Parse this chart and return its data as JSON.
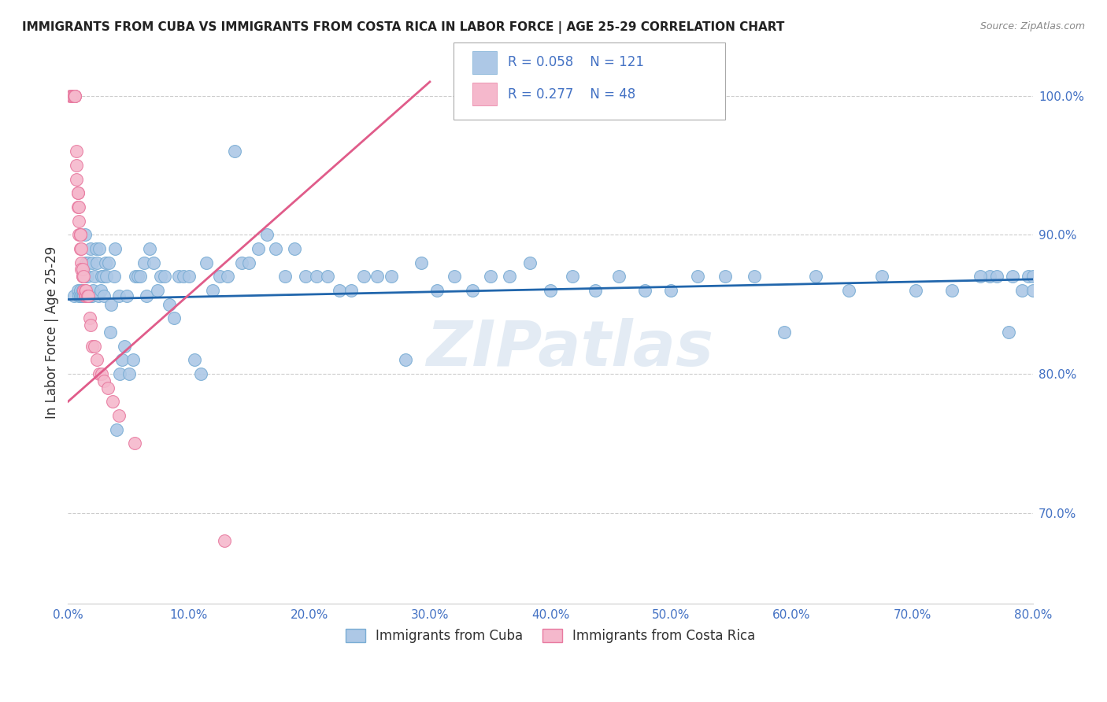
{
  "title": "IMMIGRANTS FROM CUBA VS IMMIGRANTS FROM COSTA RICA IN LABOR FORCE | AGE 25-29 CORRELATION CHART",
  "source": "Source: ZipAtlas.com",
  "ylabel": "In Labor Force | Age 25-29",
  "xlim": [
    0.0,
    0.8
  ],
  "ylim": [
    0.635,
    1.025
  ],
  "xticks": [
    0.0,
    0.1,
    0.2,
    0.3,
    0.4,
    0.5,
    0.6,
    0.7,
    0.8
  ],
  "xticklabels": [
    "0.0%",
    "10.0%",
    "20.0%",
    "30.0%",
    "40.0%",
    "50.0%",
    "60.0%",
    "70.0%",
    "80.0%"
  ],
  "yticks_right": [
    0.7,
    0.8,
    0.9,
    1.0
  ],
  "ytick_right_labels": [
    "70.0%",
    "80.0%",
    "90.0%",
    "100.0%"
  ],
  "cuba_color": "#adc8e6",
  "cuba_edge": "#7aadd4",
  "costa_rica_color": "#f5b8cc",
  "costa_rica_edge": "#e87aa0",
  "cuba_R": 0.058,
  "cuba_N": 121,
  "costa_rica_R": 0.277,
  "costa_rica_N": 48,
  "trend_cuba_color": "#2166ac",
  "trend_costa_rica_color": "#e05c8a",
  "watermark": "ZIPatlas",
  "background_color": "#ffffff",
  "grid_color": "#cccccc",
  "axis_label_color": "#4472c4",
  "title_color": "#222222",
  "cuba_x": [
    0.005,
    0.008,
    0.009,
    0.01,
    0.01,
    0.011,
    0.012,
    0.012,
    0.013,
    0.013,
    0.014,
    0.014,
    0.015,
    0.015,
    0.016,
    0.016,
    0.017,
    0.017,
    0.018,
    0.018,
    0.019,
    0.019,
    0.02,
    0.02,
    0.021,
    0.022,
    0.023,
    0.024,
    0.025,
    0.026,
    0.027,
    0.028,
    0.029,
    0.03,
    0.031,
    0.032,
    0.034,
    0.035,
    0.036,
    0.038,
    0.039,
    0.04,
    0.042,
    0.043,
    0.045,
    0.047,
    0.049,
    0.051,
    0.054,
    0.056,
    0.058,
    0.06,
    0.063,
    0.065,
    0.068,
    0.071,
    0.074,
    0.077,
    0.08,
    0.084,
    0.088,
    0.092,
    0.096,
    0.1,
    0.105,
    0.11,
    0.115,
    0.12,
    0.126,
    0.132,
    0.138,
    0.144,
    0.15,
    0.158,
    0.165,
    0.172,
    0.18,
    0.188,
    0.197,
    0.206,
    0.215,
    0.225,
    0.235,
    0.245,
    0.256,
    0.268,
    0.28,
    0.293,
    0.306,
    0.32,
    0.335,
    0.35,
    0.366,
    0.383,
    0.4,
    0.418,
    0.437,
    0.457,
    0.478,
    0.5,
    0.522,
    0.545,
    0.569,
    0.594,
    0.62,
    0.647,
    0.675,
    0.703,
    0.733,
    0.764,
    0.756,
    0.77,
    0.783,
    0.796,
    0.806,
    0.817,
    0.78,
    0.791,
    0.8,
    0.81,
    0.8
  ],
  "cuba_y": [
    0.856,
    0.86,
    0.856,
    0.856,
    0.86,
    0.856,
    0.856,
    0.86,
    0.856,
    0.87,
    0.87,
    0.9,
    0.88,
    0.856,
    0.856,
    0.87,
    0.856,
    0.88,
    0.856,
    0.856,
    0.856,
    0.89,
    0.856,
    0.88,
    0.86,
    0.87,
    0.89,
    0.88,
    0.856,
    0.89,
    0.86,
    0.87,
    0.87,
    0.856,
    0.88,
    0.87,
    0.88,
    0.83,
    0.85,
    0.87,
    0.89,
    0.76,
    0.856,
    0.8,
    0.81,
    0.82,
    0.856,
    0.8,
    0.81,
    0.87,
    0.87,
    0.87,
    0.88,
    0.856,
    0.89,
    0.88,
    0.86,
    0.87,
    0.87,
    0.85,
    0.84,
    0.87,
    0.87,
    0.87,
    0.81,
    0.8,
    0.88,
    0.86,
    0.87,
    0.87,
    0.96,
    0.88,
    0.88,
    0.89,
    0.9,
    0.89,
    0.87,
    0.89,
    0.87,
    0.87,
    0.87,
    0.86,
    0.86,
    0.87,
    0.87,
    0.87,
    0.81,
    0.88,
    0.86,
    0.87,
    0.86,
    0.87,
    0.87,
    0.88,
    0.86,
    0.87,
    0.86,
    0.87,
    0.86,
    0.86,
    0.87,
    0.87,
    0.87,
    0.83,
    0.87,
    0.86,
    0.87,
    0.86,
    0.86,
    0.87,
    0.87,
    0.87,
    0.87,
    0.87,
    0.87,
    0.87,
    0.83,
    0.86,
    0.86,
    0.87,
    0.87
  ],
  "cr_x": [
    0.002,
    0.003,
    0.004,
    0.005,
    0.005,
    0.006,
    0.006,
    0.006,
    0.007,
    0.007,
    0.007,
    0.008,
    0.008,
    0.008,
    0.009,
    0.009,
    0.009,
    0.01,
    0.01,
    0.01,
    0.01,
    0.011,
    0.011,
    0.011,
    0.012,
    0.012,
    0.012,
    0.013,
    0.013,
    0.014,
    0.014,
    0.015,
    0.015,
    0.016,
    0.017,
    0.018,
    0.019,
    0.02,
    0.022,
    0.024,
    0.026,
    0.028,
    0.03,
    0.033,
    0.037,
    0.042,
    0.055,
    0.13
  ],
  "cr_y": [
    1.0,
    1.0,
    1.0,
    1.0,
    1.0,
    1.0,
    1.0,
    1.0,
    0.96,
    0.95,
    0.94,
    0.93,
    0.93,
    0.92,
    0.92,
    0.91,
    0.9,
    0.9,
    0.9,
    0.9,
    0.89,
    0.89,
    0.88,
    0.875,
    0.87,
    0.87,
    0.875,
    0.87,
    0.86,
    0.86,
    0.856,
    0.856,
    0.86,
    0.856,
    0.856,
    0.84,
    0.835,
    0.82,
    0.82,
    0.81,
    0.8,
    0.8,
    0.795,
    0.79,
    0.78,
    0.77,
    0.75,
    0.68
  ],
  "cuba_trend_x": [
    0.0,
    0.8
  ],
  "cuba_trend_y": [
    0.8535,
    0.868
  ],
  "cr_trend_x": [
    0.0,
    0.3
  ],
  "cr_trend_y": [
    0.78,
    1.01
  ]
}
